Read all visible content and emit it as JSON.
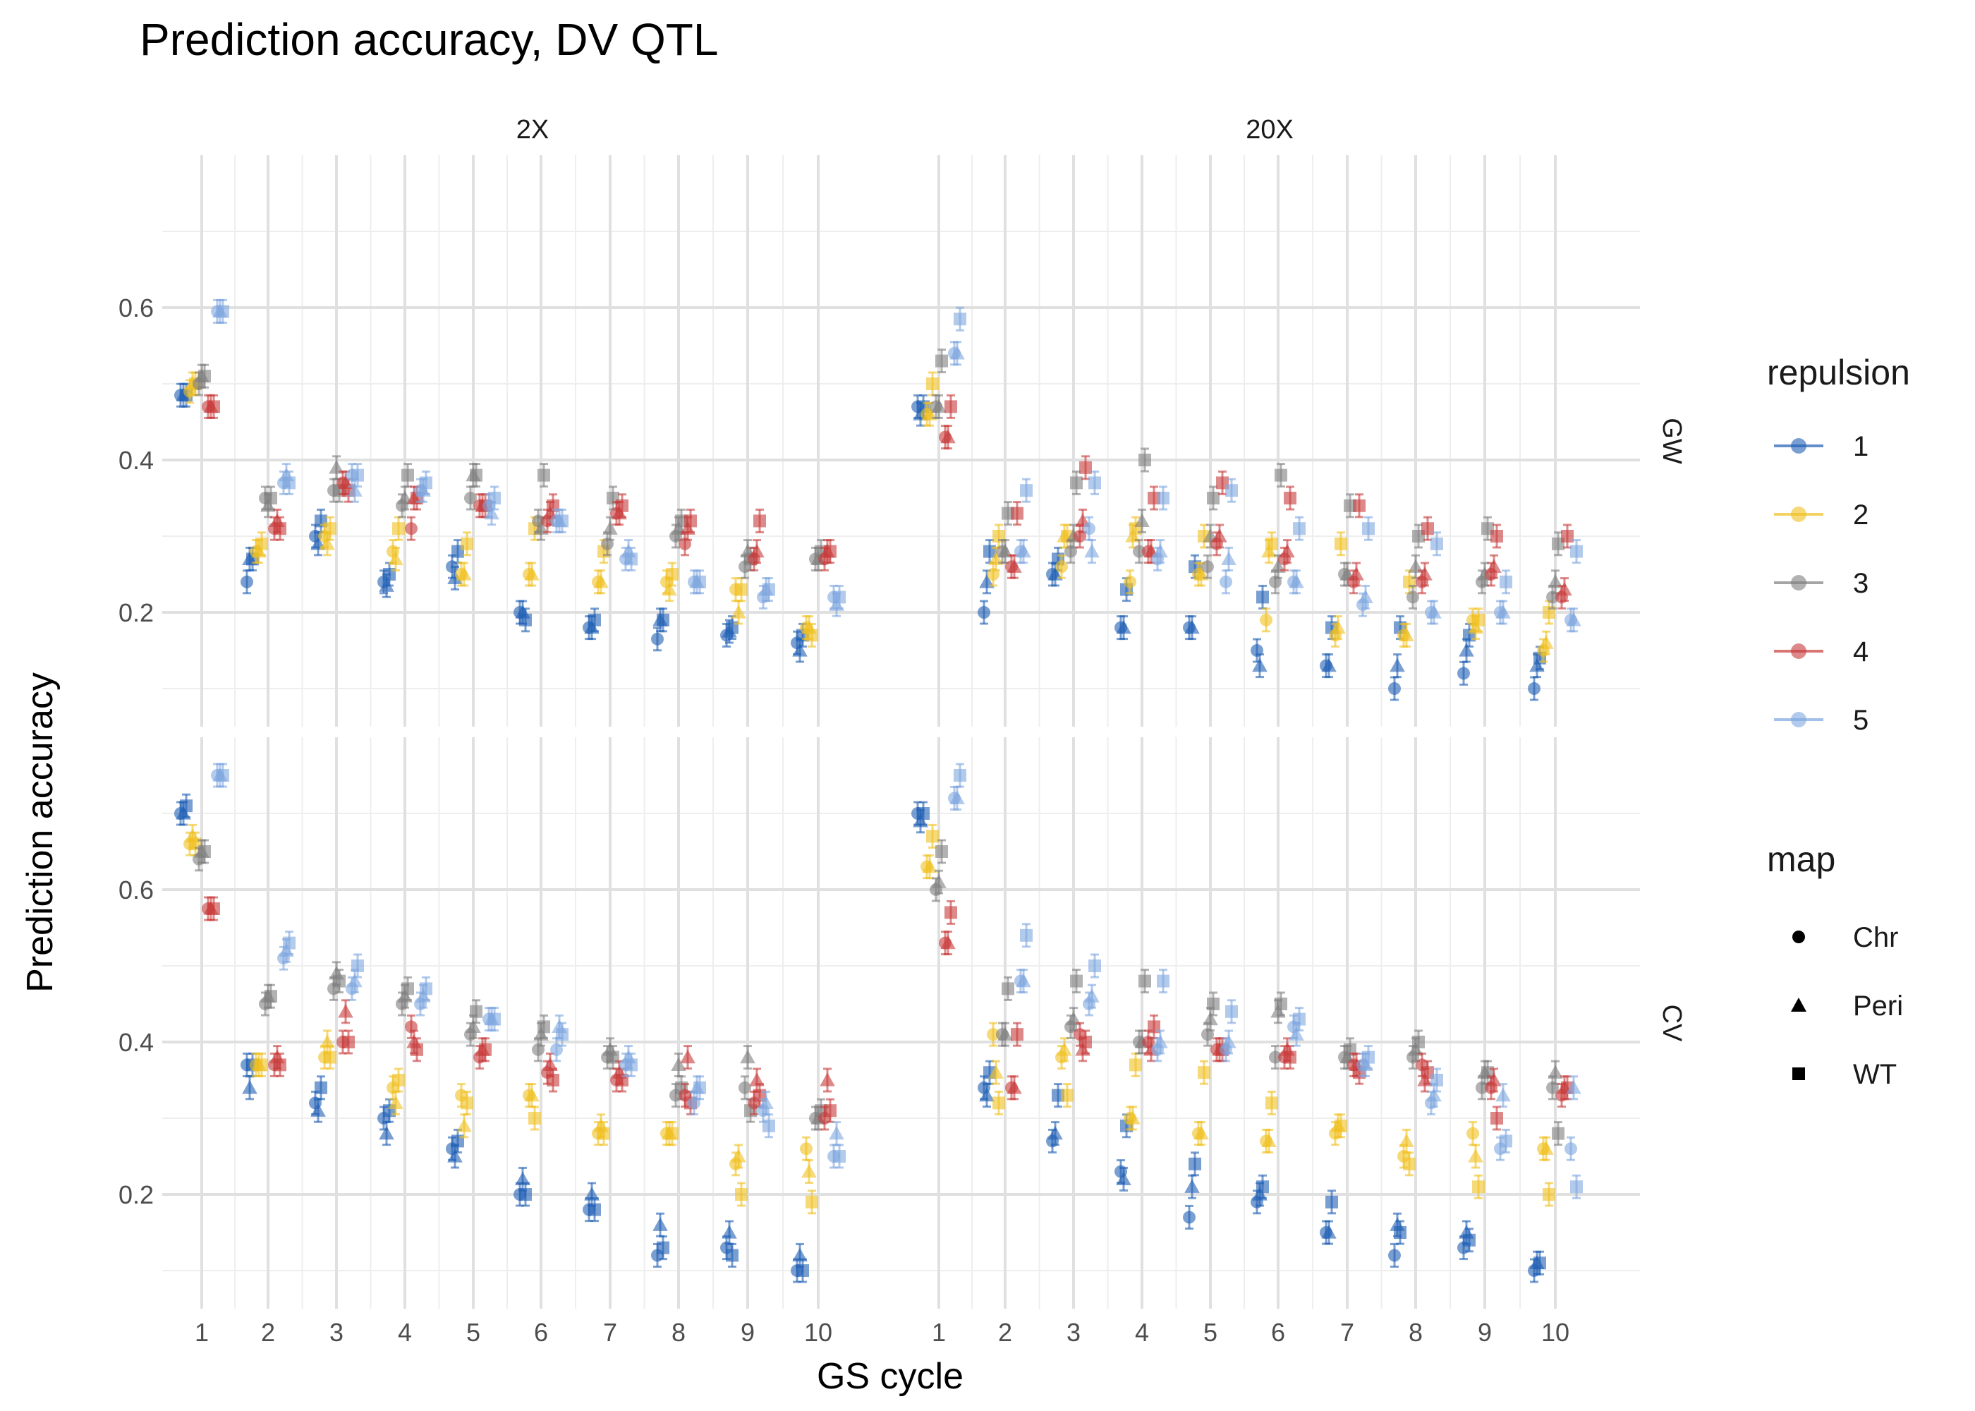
{
  "chart_data": {
    "type": "scatter",
    "title": "Prediction accuracy, DV QTL",
    "xlabel": "GS cycle",
    "ylabel": "Prediction accuracy",
    "x_ticks": [
      "1",
      "2",
      "3",
      "4",
      "5",
      "6",
      "7",
      "8",
      "9",
      "10"
    ],
    "y_ticks": [
      "0.2",
      "0.4",
      "0.6"
    ],
    "ylim": [
      0.05,
      0.8
    ],
    "grid": true,
    "col_facets": [
      "2X",
      "20X"
    ],
    "row_facets": [
      "GW",
      "CV"
    ],
    "legend": {
      "placement": "right",
      "color_title": "repulsion",
      "color_levels": [
        "1",
        "2",
        "3",
        "4",
        "5"
      ],
      "colors": [
        "#1f5fb4",
        "#f0c020",
        "#7f7f7f",
        "#c83a3a",
        "#7ea6e0"
      ],
      "shape_title": "map",
      "shape_levels": [
        "Chr",
        "Peri",
        "WT"
      ],
      "shapes": [
        "circle",
        "triangle",
        "square"
      ]
    },
    "panels": [
      {
        "col": "2X",
        "row": "GW",
        "series": [
          {
            "repulsion": "1",
            "Chr": [
              0.485,
              0.24,
              0.3,
              0.24,
              0.26,
              0.2,
              0.18,
              0.165,
              0.17,
              0.16
            ],
            "Peri": [
              0.485,
              0.27,
              0.29,
              0.235,
              0.245,
              0.2,
              0.18,
              0.19,
              0.175,
              0.15
            ],
            "WT": [
              0.485,
              0.27,
              0.32,
              0.25,
              0.28,
              0.19,
              0.19,
              0.19,
              0.18,
              0.17
            ]
          },
          {
            "repulsion": "2",
            "Chr": [
              0.49,
              0.28,
              0.3,
              0.28,
              0.25,
              0.25,
              0.24,
              0.24,
              0.23,
              0.18
            ],
            "Peri": [
              0.5,
              0.28,
              0.29,
              0.27,
              0.25,
              0.25,
              0.24,
              0.23,
              0.2,
              0.18
            ],
            "WT": [
              0.5,
              0.29,
              0.31,
              0.31,
              0.29,
              0.31,
              0.28,
              0.25,
              0.23,
              0.17
            ]
          },
          {
            "repulsion": "3",
            "Chr": [
              0.5,
              0.35,
              0.36,
              0.34,
              0.35,
              0.32,
              0.29,
              0.3,
              0.26,
              0.27
            ],
            "Peri": [
              0.51,
              0.34,
              0.39,
              0.35,
              0.38,
              0.31,
              0.31,
              0.31,
              0.28,
              0.27
            ],
            "WT": [
              0.51,
              0.35,
              0.36,
              0.38,
              0.38,
              0.38,
              0.35,
              0.32,
              0.27,
              0.28
            ]
          },
          {
            "repulsion": "4",
            "Chr": [
              0.47,
              0.31,
              0.37,
              0.31,
              0.34,
              0.32,
              0.33,
              0.29,
              0.27,
              0.27
            ],
            "Peri": [
              0.47,
              0.32,
              0.37,
              0.35,
              0.34,
              0.33,
              0.33,
              0.31,
              0.28,
              0.28
            ],
            "WT": [
              0.47,
              0.31,
              0.36,
              0.35,
              0.34,
              0.34,
              0.34,
              0.32,
              0.32,
              0.28
            ]
          },
          {
            "repulsion": "5",
            "Chr": [
              0.595,
              0.37,
              0.38,
              0.36,
              0.34,
              0.32,
              0.27,
              0.24,
              0.22,
              0.22
            ],
            "Peri": [
              0.595,
              0.38,
              0.36,
              0.36,
              0.33,
              0.32,
              0.28,
              0.24,
              0.23,
              0.21
            ],
            "WT": [
              0.595,
              0.37,
              0.38,
              0.37,
              0.35,
              0.32,
              0.27,
              0.24,
              0.23,
              0.22
            ]
          }
        ]
      },
      {
        "col": "20X",
        "row": "GW",
        "series": [
          {
            "repulsion": "1",
            "Chr": [
              0.47,
              0.2,
              0.25,
              0.18,
              0.18,
              0.15,
              0.13,
              0.1,
              0.12,
              0.1
            ],
            "Peri": [
              0.46,
              0.24,
              0.25,
              0.18,
              0.18,
              0.13,
              0.13,
              0.13,
              0.15,
              0.13
            ],
            "WT": [
              0.47,
              0.28,
              0.27,
              0.23,
              0.26,
              0.22,
              0.18,
              0.18,
              0.17,
              0.14
            ]
          },
          {
            "repulsion": "2",
            "Chr": [
              0.46,
              0.25,
              0.26,
              0.24,
              0.25,
              0.19,
              0.17,
              0.17,
              0.19,
              0.15
            ],
            "Peri": [
              0.46,
              0.27,
              0.3,
              0.3,
              0.25,
              0.28,
              0.18,
              0.17,
              0.18,
              0.16
            ],
            "WT": [
              0.5,
              0.3,
              0.3,
              0.31,
              0.3,
              0.29,
              0.29,
              0.24,
              0.19,
              0.2
            ]
          },
          {
            "repulsion": "3",
            "Chr": [
              0.47,
              0.28,
              0.28,
              0.28,
              0.26,
              0.24,
              0.25,
              0.22,
              0.24,
              0.22
            ],
            "Peri": [
              0.47,
              0.28,
              0.3,
              0.32,
              0.3,
              0.26,
              0.25,
              0.26,
              0.25,
              0.24
            ],
            "WT": [
              0.53,
              0.33,
              0.37,
              0.4,
              0.35,
              0.38,
              0.34,
              0.3,
              0.31,
              0.29
            ]
          },
          {
            "repulsion": "4",
            "Chr": [
              0.43,
              0.26,
              0.3,
              0.28,
              0.29,
              0.27,
              0.24,
              0.24,
              0.25,
              0.22
            ],
            "Peri": [
              0.43,
              0.26,
              0.32,
              0.28,
              0.3,
              0.28,
              0.25,
              0.25,
              0.26,
              0.23
            ],
            "WT": [
              0.47,
              0.33,
              0.39,
              0.35,
              0.37,
              0.35,
              0.34,
              0.31,
              0.3,
              0.3
            ]
          },
          {
            "repulsion": "5",
            "Chr": [
              0.54,
              0.28,
              0.31,
              0.27,
              0.24,
              0.24,
              0.21,
              0.2,
              0.2,
              0.19
            ],
            "Peri": [
              0.54,
              0.28,
              0.28,
              0.28,
              0.27,
              0.24,
              0.22,
              0.2,
              0.2,
              0.19
            ],
            "WT": [
              0.585,
              0.36,
              0.37,
              0.35,
              0.36,
              0.31,
              0.31,
              0.29,
              0.24,
              0.28
            ]
          }
        ]
      },
      {
        "col": "2X",
        "row": "CV",
        "series": [
          {
            "repulsion": "1",
            "Chr": [
              0.7,
              0.37,
              0.32,
              0.3,
              0.26,
              0.2,
              0.18,
              0.12,
              0.13,
              0.1
            ],
            "Peri": [
              0.7,
              0.34,
              0.31,
              0.28,
              0.25,
              0.22,
              0.2,
              0.16,
              0.15,
              0.12
            ],
            "WT": [
              0.71,
              0.37,
              0.34,
              0.31,
              0.27,
              0.2,
              0.18,
              0.13,
              0.12,
              0.1
            ]
          },
          {
            "repulsion": "2",
            "Chr": [
              0.66,
              0.37,
              0.38,
              0.34,
              0.33,
              0.33,
              0.28,
              0.28,
              0.24,
              0.26
            ],
            "Peri": [
              0.67,
              0.37,
              0.4,
              0.32,
              0.29,
              0.33,
              0.29,
              0.28,
              0.25,
              0.23
            ],
            "WT": [
              0.66,
              0.37,
              0.38,
              0.35,
              0.32,
              0.3,
              0.28,
              0.28,
              0.2,
              0.19
            ]
          },
          {
            "repulsion": "3",
            "Chr": [
              0.64,
              0.45,
              0.47,
              0.45,
              0.41,
              0.39,
              0.38,
              0.33,
              0.34,
              0.3
            ],
            "Peri": [
              0.65,
              0.46,
              0.49,
              0.46,
              0.42,
              0.41,
              0.39,
              0.37,
              0.38,
              0.3
            ],
            "WT": [
              0.65,
              0.46,
              0.48,
              0.47,
              0.44,
              0.42,
              0.38,
              0.34,
              0.31,
              0.31
            ]
          },
          {
            "repulsion": "4",
            "Chr": [
              0.575,
              0.37,
              0.4,
              0.42,
              0.38,
              0.36,
              0.35,
              0.33,
              0.32,
              0.3
            ],
            "Peri": [
              0.575,
              0.38,
              0.44,
              0.4,
              0.39,
              0.37,
              0.36,
              0.38,
              0.35,
              0.35
            ],
            "WT": [
              0.575,
              0.37,
              0.4,
              0.39,
              0.39,
              0.35,
              0.35,
              0.32,
              0.33,
              0.31
            ]
          },
          {
            "repulsion": "5",
            "Chr": [
              0.75,
              0.51,
              0.47,
              0.45,
              0.43,
              0.39,
              0.37,
              0.32,
              0.31,
              0.25
            ],
            "Peri": [
              0.75,
              0.52,
              0.48,
              0.46,
              0.43,
              0.42,
              0.38,
              0.34,
              0.32,
              0.28
            ],
            "WT": [
              0.75,
              0.53,
              0.5,
              0.47,
              0.43,
              0.41,
              0.37,
              0.34,
              0.29,
              0.25
            ]
          }
        ]
      },
      {
        "col": "20X",
        "row": "CV",
        "series": [
          {
            "repulsion": "1",
            "Chr": [
              0.7,
              0.34,
              0.27,
              0.23,
              0.17,
              0.19,
              0.15,
              0.12,
              0.13,
              0.1
            ],
            "Peri": [
              0.69,
              0.33,
              0.28,
              0.22,
              0.21,
              0.2,
              0.15,
              0.16,
              0.15,
              0.11
            ],
            "WT": [
              0.7,
              0.36,
              0.33,
              0.29,
              0.24,
              0.21,
              0.19,
              0.15,
              0.14,
              0.11
            ]
          },
          {
            "repulsion": "2",
            "Chr": [
              0.63,
              0.41,
              0.38,
              0.3,
              0.28,
              0.27,
              0.28,
              0.25,
              0.28,
              0.26
            ],
            "Peri": [
              0.63,
              0.36,
              0.39,
              0.3,
              0.28,
              0.27,
              0.29,
              0.27,
              0.25,
              0.26
            ],
            "WT": [
              0.67,
              0.32,
              0.33,
              0.37,
              0.36,
              0.32,
              0.29,
              0.24,
              0.21,
              0.2
            ]
          },
          {
            "repulsion": "3",
            "Chr": [
              0.6,
              0.41,
              0.42,
              0.4,
              0.41,
              0.38,
              0.38,
              0.38,
              0.34,
              0.34
            ],
            "Peri": [
              0.61,
              0.41,
              0.43,
              0.4,
              0.43,
              0.44,
              0.38,
              0.39,
              0.36,
              0.36
            ],
            "WT": [
              0.65,
              0.47,
              0.48,
              0.48,
              0.45,
              0.45,
              0.39,
              0.4,
              0.36,
              0.28
            ]
          },
          {
            "repulsion": "4",
            "Chr": [
              0.53,
              0.34,
              0.41,
              0.4,
              0.39,
              0.38,
              0.37,
              0.37,
              0.34,
              0.33
            ],
            "Peri": [
              0.53,
              0.34,
              0.39,
              0.39,
              0.39,
              0.39,
              0.37,
              0.35,
              0.35,
              0.34
            ],
            "WT": [
              0.57,
              0.41,
              0.4,
              0.42,
              0.39,
              0.38,
              0.36,
              0.36,
              0.3,
              0.34
            ]
          },
          {
            "repulsion": "5",
            "Chr": [
              0.72,
              0.48,
              0.45,
              0.39,
              0.39,
              0.42,
              0.37,
              0.32,
              0.26,
              0.26
            ],
            "Peri": [
              0.72,
              0.48,
              0.46,
              0.4,
              0.4,
              0.41,
              0.37,
              0.33,
              0.33,
              0.34
            ],
            "WT": [
              0.75,
              0.54,
              0.5,
              0.48,
              0.44,
              0.43,
              0.38,
              0.35,
              0.27,
              0.21
            ]
          }
        ]
      }
    ]
  }
}
